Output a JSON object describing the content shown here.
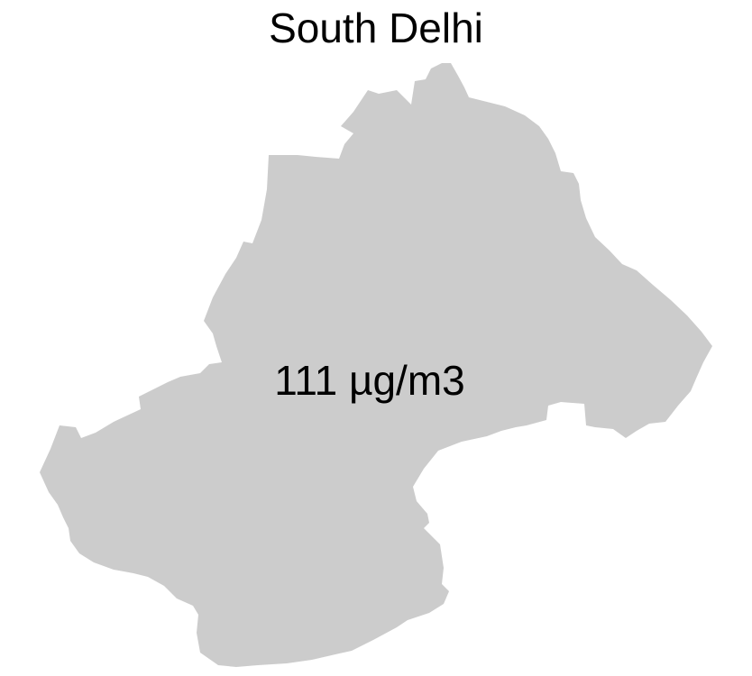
{
  "map": {
    "title": "South Delhi",
    "region_value_label": "111 µg/m3",
    "fill_color": "#cccccc",
    "text_color": "#000000",
    "background_color": "#ffffff"
  }
}
